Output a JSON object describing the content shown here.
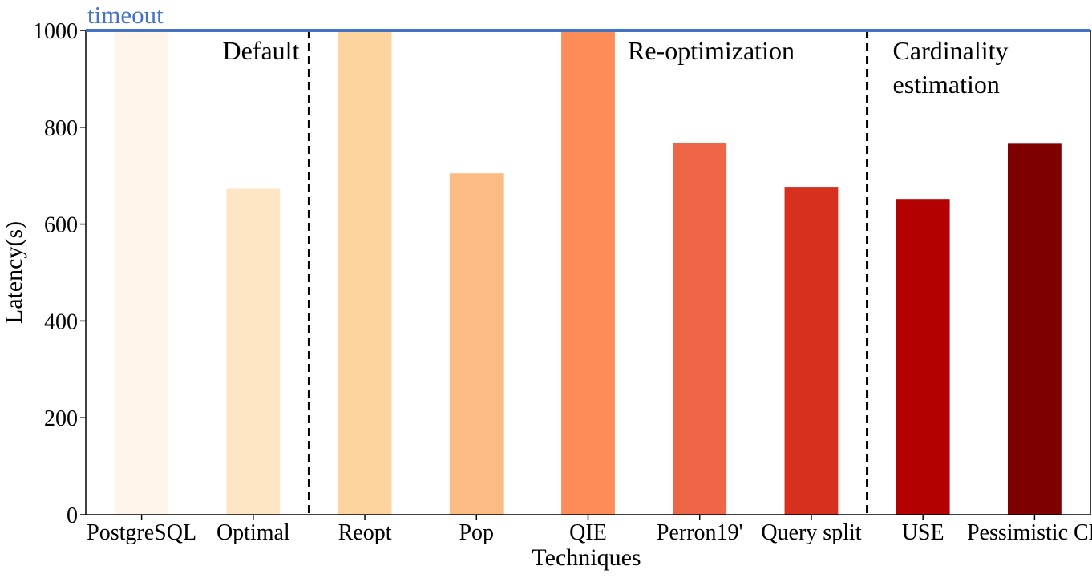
{
  "chart_data": {
    "type": "bar",
    "xlabel": "Techniques",
    "ylabel": "Latency(s)",
    "ylim": [
      0,
      1000
    ],
    "yticks": [
      0,
      200,
      400,
      600,
      800,
      1000
    ],
    "categories": [
      "PostgreSQL",
      "Optimal",
      "Reopt",
      "Pop",
      "QIE",
      "Perron19'",
      "Query split",
      "USE",
      "Pessimistic CE"
    ],
    "values": [
      1000,
      673,
      1000,
      705,
      1000,
      768,
      677,
      652,
      766
    ],
    "colors": [
      "#fff5eb",
      "#fee6c5",
      "#fdd49e",
      "#fdbb84",
      "#fc8d59",
      "#ef6548",
      "#d7301f",
      "#b30000",
      "#7f0000"
    ],
    "timeout": {
      "value": 1000,
      "label": "timeout",
      "color": "#4472c4"
    },
    "groups": [
      {
        "lines": [
          "Default"
        ],
        "align": "end"
      },
      {
        "lines": [
          "Re-optimization"
        ],
        "align": "start"
      },
      {
        "lines": [
          "Cardinality",
          "estimation"
        ],
        "align": "start"
      }
    ],
    "separators_after_index": [
      1,
      6
    ],
    "grid": false
  }
}
